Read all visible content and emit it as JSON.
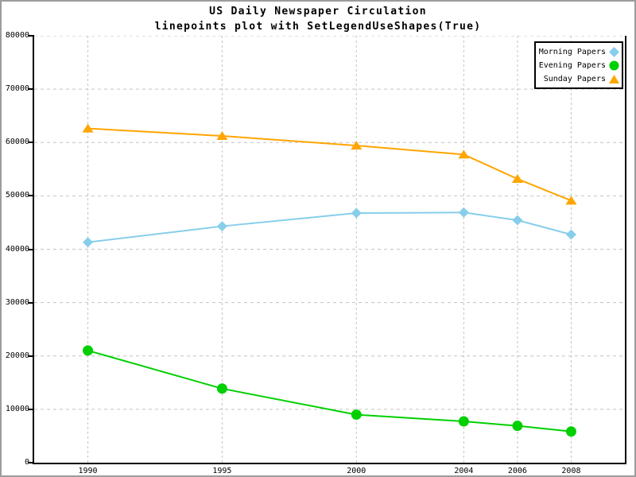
{
  "title": "US Daily Newspaper Circulation",
  "subtitle": "linepoints plot with SetLegendUseShapes(True)",
  "legend": {
    "position": "top-right",
    "items": [
      {
        "label": "Morning Papers",
        "shape": "diamond",
        "color": "#87CEEB"
      },
      {
        "label": "Evening Papers",
        "shape": "circle",
        "color": "#00D000"
      },
      {
        "label": "Sunday Papers",
        "shape": "triangle",
        "color": "#FFA500"
      }
    ]
  },
  "chart_data": {
    "type": "line",
    "title": "US Daily Newspaper Circulation",
    "subtitle": "linepoints plot with SetLegendUseShapes(True)",
    "x": [
      1990,
      1995,
      2000,
      2004,
      2006,
      2008
    ],
    "series": [
      {
        "name": "Morning Papers",
        "marker": "diamond",
        "color": "#87CEEB",
        "values": [
          41311,
          44310,
          46772,
          46887,
          45441,
          42757
        ]
      },
      {
        "name": "Evening Papers",
        "marker": "circle",
        "color": "#00D000",
        "values": [
          21017,
          13883,
          9000,
          7738,
          6900,
          5840
        ]
      },
      {
        "name": "Sunday Papers",
        "marker": "triangle",
        "color": "#FFA500",
        "values": [
          62634,
          61229,
          59421,
          57754,
          53179,
          49115
        ]
      }
    ],
    "xlabel": "",
    "ylabel": "",
    "xlim": [
      1988,
      2010
    ],
    "ylim": [
      0,
      80000
    ],
    "x_ticks": [
      1990,
      1995,
      2000,
      2004,
      2006,
      2008
    ],
    "x_tick_labels": [
      "1990",
      "1995",
      "2000",
      "2004",
      "2006",
      "2008"
    ],
    "y_ticks": [
      0,
      10000,
      20000,
      30000,
      40000,
      50000,
      60000,
      70000,
      80000
    ],
    "y_tick_labels": [
      "0",
      "10000",
      "20000",
      "30000",
      "40000",
      "50000",
      "60000",
      "70000",
      "80000"
    ],
    "grid": "dashed, horizontal and vertical",
    "legend_position": "top-right"
  },
  "colors": {
    "background": "#ffffff",
    "image_border": "#9c9c9c",
    "axis": "#000000",
    "grid": "#c4c4c4",
    "text": "#000000"
  }
}
